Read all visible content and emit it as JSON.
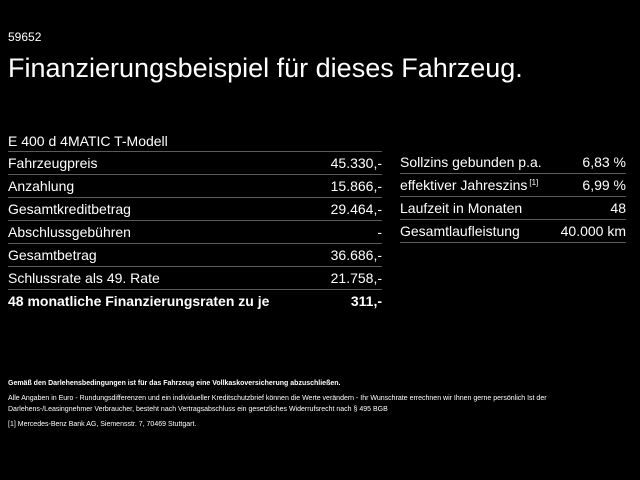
{
  "vehicle_id": "59652",
  "title": "Finanzierungsbeispiel für dieses Fahrzeug.",
  "model": "E 400 d 4MATIC T-Modell",
  "left_table": [
    {
      "label": "Fahrzeugpreis",
      "value": "45.330,-"
    },
    {
      "label": "Anzahlung",
      "value": "15.866,-"
    },
    {
      "label": "Gesamtkreditbetrag",
      "value": "29.464,-"
    },
    {
      "label": "Abschlussgebühren",
      "value": "-"
    },
    {
      "label": "Gesamtbetrag",
      "value": "36.686,-"
    },
    {
      "label": "Schlussrate als 49. Rate",
      "value": "21.758,-"
    },
    {
      "label": "48 monatliche Finanzierungsraten zu je",
      "value": "311,-"
    }
  ],
  "right_table": [
    {
      "label": "Sollzins gebunden p.a.",
      "sup": "",
      "value": "6,83 %"
    },
    {
      "label": "effektiver Jahreszins",
      "sup": "[1]",
      "value": "6,99 %"
    },
    {
      "label": "Laufzeit in Monaten",
      "sup": "",
      "value": "48"
    },
    {
      "label": "Gesamtlaufleistung",
      "sup": "",
      "value": "40.000 km"
    }
  ],
  "notes": {
    "insurance": "Gemäß den Darlehensbedingungen ist für das Fahrzeug eine Vollkaskoversicherung abzuschließen.",
    "disclaimer": "Alle Angaben in Euro - Rundungsdifferenzen und ein individueller Kreditschutzbrief können die Werte verändern - Ihr Wunschrate errechnen wir Ihnen gerne persönlich Ist der Darlehens-/Leasingnehmer Verbraucher, besteht nach Vertragsabschluss ein gesetzliches Widerrufsrecht nach § 495 BGB",
    "footnote_marker": "[1]",
    "footnote": "Mercedes-Benz Bank AG, Siemensstr. 7, 70469 Stuttgart."
  }
}
